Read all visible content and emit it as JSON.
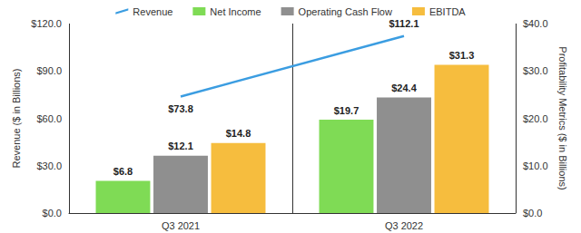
{
  "chart_data": {
    "type": "bar",
    "categories": [
      "Q3 2021",
      "Q3 2022"
    ],
    "series": [
      {
        "name": "Revenue",
        "type": "line",
        "color": "#3b9de1",
        "values": [
          73.8,
          112.1
        ],
        "value_labels": [
          "$73.8",
          "$112.1"
        ]
      },
      {
        "name": "Net Income",
        "type": "bar",
        "axis": "y2",
        "color": "#7fdb55",
        "values": [
          6.8,
          19.7
        ],
        "value_labels": [
          "$6.8",
          "$19.7"
        ]
      },
      {
        "name": "Operating Cash Flow",
        "type": "bar",
        "axis": "y2",
        "color": "#8f8f8f",
        "values": [
          12.1,
          24.4
        ],
        "value_labels": [
          "$12.1",
          "$24.4"
        ]
      },
      {
        "name": "EBITDA",
        "type": "bar",
        "axis": "y2",
        "color": "#f6bd3e",
        "values": [
          14.8,
          31.3
        ],
        "value_labels": [
          "$14.8",
          "$31.3"
        ]
      }
    ],
    "ylabel": "Revenue ($ in Billions)",
    "y2label": "Profitability Metrics ($ in Billions)",
    "ylim": [
      0,
      120
    ],
    "yticks": [
      {
        "value": 0,
        "label": "$0.0"
      },
      {
        "value": 30,
        "label": "$30.0"
      },
      {
        "value": 60,
        "label": "$60.0"
      },
      {
        "value": 90,
        "label": "$90.0"
      },
      {
        "value": 120,
        "label": "$120.0"
      }
    ],
    "y2lim": [
      0,
      40
    ],
    "y2ticks": [
      {
        "value": 0,
        "label": "$0.0"
      },
      {
        "value": 10,
        "label": "$10.0"
      },
      {
        "value": 20,
        "label": "$20.0"
      },
      {
        "value": 30,
        "label": "$30.0"
      },
      {
        "value": 40,
        "label": "$40.0"
      }
    ],
    "legend": "top",
    "data_labels": true,
    "grid": false
  }
}
